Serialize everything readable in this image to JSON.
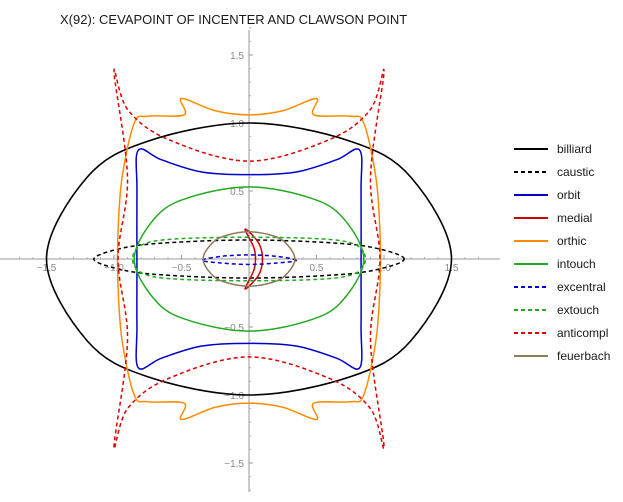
{
  "chart_data": {
    "type": "line",
    "title": "X(92): CEVAPOINT OF INCENTER AND CLAWSON POINT",
    "xlabel": "",
    "ylabel": "",
    "xlim": [
      -1.85,
      1.85
    ],
    "ylim": [
      -1.78,
      1.75
    ],
    "x_ticks": [
      {
        "value": -1.5,
        "label": "−1.5"
      },
      {
        "value": -1.0,
        "label": "−1.0"
      },
      {
        "value": -0.5,
        "label": "−0.5"
      },
      {
        "value": 0.5,
        "label": "0.5"
      },
      {
        "value": 1.0,
        "label": "1.0"
      },
      {
        "value": 1.5,
        "label": "1.5"
      }
    ],
    "y_ticks": [
      {
        "value": 1.5,
        "label": "1.5"
      },
      {
        "value": 1.0,
        "label": "1.0"
      },
      {
        "value": 0.5,
        "label": "0.5"
      },
      {
        "value": -0.5,
        "label": "−0.5"
      },
      {
        "value": -1.0,
        "label": "−1.0"
      },
      {
        "value": -1.5,
        "label": "−1.5"
      }
    ],
    "grid": false,
    "legend_position": "right",
    "series": [
      {
        "name": "billiard",
        "color": "#000000",
        "style": "solid",
        "points": [
          [
            1.5,
            0
          ],
          [
            1.2,
            0.6
          ],
          [
            0.75,
            0.866
          ],
          [
            0,
            1
          ],
          [
            -0.75,
            0.866
          ],
          [
            -1.2,
            0.6
          ],
          [
            -1.5,
            0
          ],
          [
            -1.2,
            -0.6
          ],
          [
            -0.75,
            -0.866
          ],
          [
            0,
            -1
          ],
          [
            0.75,
            -0.866
          ],
          [
            1.2,
            -0.6
          ],
          [
            1.5,
            0
          ]
        ]
      },
      {
        "name": "caustic",
        "color": "#000000",
        "style": "dashed",
        "points": [
          [
            1.15,
            0
          ],
          [
            0.92,
            0.084
          ],
          [
            0.575,
            0.121
          ],
          [
            0,
            0.14
          ],
          [
            -0.575,
            0.121
          ],
          [
            -0.92,
            0.084
          ],
          [
            -1.15,
            0
          ],
          [
            -0.92,
            -0.084
          ],
          [
            -0.575,
            -0.121
          ],
          [
            0,
            -0.14
          ],
          [
            0.575,
            -0.121
          ],
          [
            0.92,
            -0.084
          ],
          [
            1.15,
            0
          ]
        ]
      },
      {
        "name": "orbit",
        "color": "#0000cc",
        "style": "solid",
        "points": [
          [
            0.83,
            -0.1
          ],
          [
            0.83,
            0.5
          ],
          [
            0.82,
            0.8
          ],
          [
            0.65,
            0.73
          ],
          [
            0.35,
            0.64
          ],
          [
            0,
            0.62
          ],
          [
            -0.35,
            0.64
          ],
          [
            -0.65,
            0.73
          ],
          [
            -0.82,
            0.8
          ],
          [
            -0.83,
            0.5
          ],
          [
            -0.83,
            -0.1
          ],
          [
            -0.83,
            -0.5
          ],
          [
            -0.82,
            -0.8
          ],
          [
            -0.65,
            -0.73
          ],
          [
            -0.35,
            -0.64
          ],
          [
            0,
            -0.62
          ],
          [
            0.35,
            -0.64
          ],
          [
            0.65,
            -0.73
          ],
          [
            0.82,
            -0.8
          ],
          [
            0.83,
            -0.5
          ],
          [
            0.83,
            -0.1
          ]
        ]
      },
      {
        "name": "medial",
        "color": "#cc0000",
        "style": "solid",
        "points": [
          [
            -0.03,
            0.22
          ],
          [
            0.07,
            0.12
          ],
          [
            0.1,
            0
          ],
          [
            0.07,
            -0.12
          ],
          [
            -0.03,
            -0.22
          ],
          [
            0.04,
            -0.07
          ],
          [
            0.04,
            0.07
          ],
          [
            -0.03,
            0.22
          ]
        ]
      },
      {
        "name": "orthic",
        "color": "#ff8c00",
        "style": "solid",
        "points": [
          [
            0.97,
            0.2
          ],
          [
            0.94,
            0.6
          ],
          [
            0.85,
            1.0
          ],
          [
            0.75,
            1.05
          ],
          [
            0.48,
            1.06
          ],
          [
            0.5,
            1.18
          ],
          [
            0.25,
            1.09
          ],
          [
            0,
            1.06
          ],
          [
            -0.25,
            1.09
          ],
          [
            -0.5,
            1.18
          ],
          [
            -0.48,
            1.06
          ],
          [
            -0.75,
            1.05
          ],
          [
            -0.85,
            1.0
          ],
          [
            -0.94,
            0.6
          ],
          [
            -0.97,
            0.2
          ],
          [
            -0.97,
            -0.2
          ],
          [
            -0.94,
            -0.6
          ],
          [
            -0.85,
            -1.0
          ],
          [
            -0.75,
            -1.05
          ],
          [
            -0.48,
            -1.06
          ],
          [
            -0.5,
            -1.18
          ],
          [
            -0.25,
            -1.09
          ],
          [
            0,
            -1.06
          ],
          [
            0.25,
            -1.09
          ],
          [
            0.5,
            -1.18
          ],
          [
            0.48,
            -1.06
          ],
          [
            0.75,
            -1.05
          ],
          [
            0.85,
            -1.0
          ],
          [
            0.94,
            -0.6
          ],
          [
            0.97,
            -0.2
          ],
          [
            0.97,
            0.2
          ]
        ]
      },
      {
        "name": "intouch",
        "color": "#22aa22",
        "style": "solid",
        "points": [
          [
            0.85,
            0
          ],
          [
            0.68,
            0.32
          ],
          [
            0.425,
            0.458
          ],
          [
            0,
            0.53
          ],
          [
            -0.425,
            0.458
          ],
          [
            -0.68,
            0.32
          ],
          [
            -0.85,
            0
          ],
          [
            -0.68,
            -0.32
          ],
          [
            -0.425,
            -0.458
          ],
          [
            0,
            -0.53
          ],
          [
            0.425,
            -0.458
          ],
          [
            0.68,
            -0.32
          ],
          [
            0.85,
            0
          ]
        ]
      },
      {
        "name": "excentral",
        "color": "#0000cc",
        "style": "dashed",
        "points": [
          [
            0.35,
            -0.01
          ],
          [
            0.2,
            0.02
          ],
          [
            0,
            0.03
          ],
          [
            -0.2,
            0.02
          ],
          [
            -0.35,
            -0.01
          ],
          [
            -0.2,
            -0.03
          ],
          [
            0,
            -0.04
          ],
          [
            0.2,
            -0.03
          ],
          [
            0.35,
            -0.01
          ]
        ]
      },
      {
        "name": "extouch",
        "color": "#22aa22",
        "style": "dashed",
        "points": [
          [
            0.85,
            0.05
          ],
          [
            0.75,
            0.12
          ],
          [
            0.5,
            0.15
          ],
          [
            0,
            0.16
          ],
          [
            -0.5,
            0.15
          ],
          [
            -0.75,
            0.12
          ],
          [
            -0.85,
            0.05
          ],
          [
            -0.85,
            -0.05
          ],
          [
            -0.75,
            -0.12
          ],
          [
            -0.5,
            -0.15
          ],
          [
            0,
            -0.16
          ],
          [
            0.5,
            -0.15
          ],
          [
            0.75,
            -0.12
          ],
          [
            0.85,
            -0.05
          ],
          [
            0.85,
            0.05
          ]
        ]
      },
      {
        "name": "anticompl",
        "color": "#dd0000",
        "style": "dashed",
        "points": [
          [
            1.0,
            1.38
          ],
          [
            0.9,
            1.1
          ],
          [
            0.6,
            0.88
          ],
          [
            0,
            0.72
          ],
          [
            -0.6,
            0.88
          ],
          [
            -0.9,
            1.1
          ],
          [
            -1.0,
            1.38
          ],
          [
            -0.9,
            0.6
          ],
          [
            -0.97,
            0
          ],
          [
            -0.9,
            -0.6
          ],
          [
            -1.0,
            -1.38
          ],
          [
            -0.9,
            -1.1
          ],
          [
            -0.6,
            -0.88
          ],
          [
            0,
            -0.72
          ],
          [
            0.6,
            -0.88
          ],
          [
            0.9,
            -1.1
          ],
          [
            1.0,
            -1.38
          ],
          [
            0.9,
            -0.6
          ],
          [
            0.97,
            0
          ],
          [
            0.9,
            0.6
          ],
          [
            1.0,
            1.38
          ]
        ]
      },
      {
        "name": "feuerbach",
        "color": "#8b7d5a",
        "style": "solid",
        "points": [
          [
            0.34,
            0
          ],
          [
            0.27,
            0.12
          ],
          [
            0.17,
            0.173
          ],
          [
            0,
            0.2
          ],
          [
            -0.17,
            0.173
          ],
          [
            -0.27,
            0.12
          ],
          [
            -0.34,
            0
          ],
          [
            -0.27,
            -0.12
          ],
          [
            -0.17,
            -0.173
          ],
          [
            0,
            -0.2
          ],
          [
            0.17,
            -0.173
          ],
          [
            0.27,
            -0.12
          ],
          [
            0.34,
            0
          ]
        ]
      }
    ]
  }
}
